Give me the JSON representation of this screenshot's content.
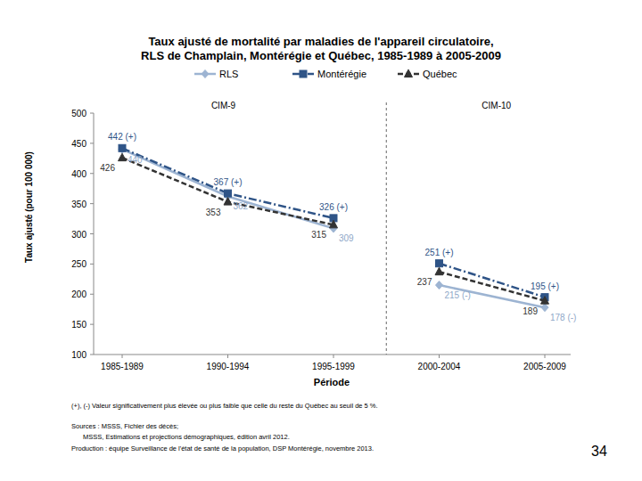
{
  "chart_data": {
    "type": "line",
    "title": "Taux ajusté de mortalité par maladies de l'appareil circulatoire,\nRLS de Champlain, Montérégie et Québec, 1985-1989 à 2005-2009",
    "x_label": "Période",
    "y_label": "Taux ajusté (pour 100 000)",
    "categories": [
      "1985-1989",
      "1990-1994",
      "1995-1999",
      "2000-2004",
      "2005-2009"
    ],
    "periods": [
      {
        "label": "CIM-9",
        "categories": [
          "1985-1989",
          "1990-1994",
          "1995-1999"
        ]
      },
      {
        "label": "CIM-10",
        "categories": [
          "2000-2004",
          "2005-2009"
        ]
      }
    ],
    "series": [
      {
        "name": "RLS",
        "color": "#9db4d2",
        "marker": "diamond",
        "line_style": "solid",
        "values": [
          440,
          362,
          309,
          215,
          178
        ],
        "value_labels": [
          "440",
          "362",
          "309",
          "215 (-)",
          "178 (-)"
        ]
      },
      {
        "name": "Montérégie",
        "color": "#2f5487",
        "marker": "square",
        "line_style": "dashdot",
        "values": [
          442,
          367,
          326,
          251,
          195
        ],
        "value_labels": [
          "442 (+)",
          "367 (+)",
          "326 (+)",
          "251 (+)",
          "195 (+)"
        ]
      },
      {
        "name": "Québec",
        "color": "#333333",
        "marker": "triangle",
        "line_style": "dashed",
        "values": [
          426,
          353,
          315,
          237,
          189
        ]
      }
    ],
    "ylim": [
      100,
      500
    ],
    "yticks": [
      100,
      150,
      200,
      250,
      300,
      350,
      400,
      450,
      500
    ],
    "grid": false,
    "legend": "top",
    "data_labels": true,
    "notes": [
      "(+), (-) Valeur significativement plus élevée ou plus faible que celle du reste du Québec au seuil de 5 %.",
      "Sources : MSSS, Fichier des décès;",
      "MSSS, Estimations et projections démographiques, édition avril 2012.",
      "Production : équipe Surveillance de l'état de santé de la population, DSP Montérégie, novembre 2013."
    ],
    "page_number": 34
  }
}
